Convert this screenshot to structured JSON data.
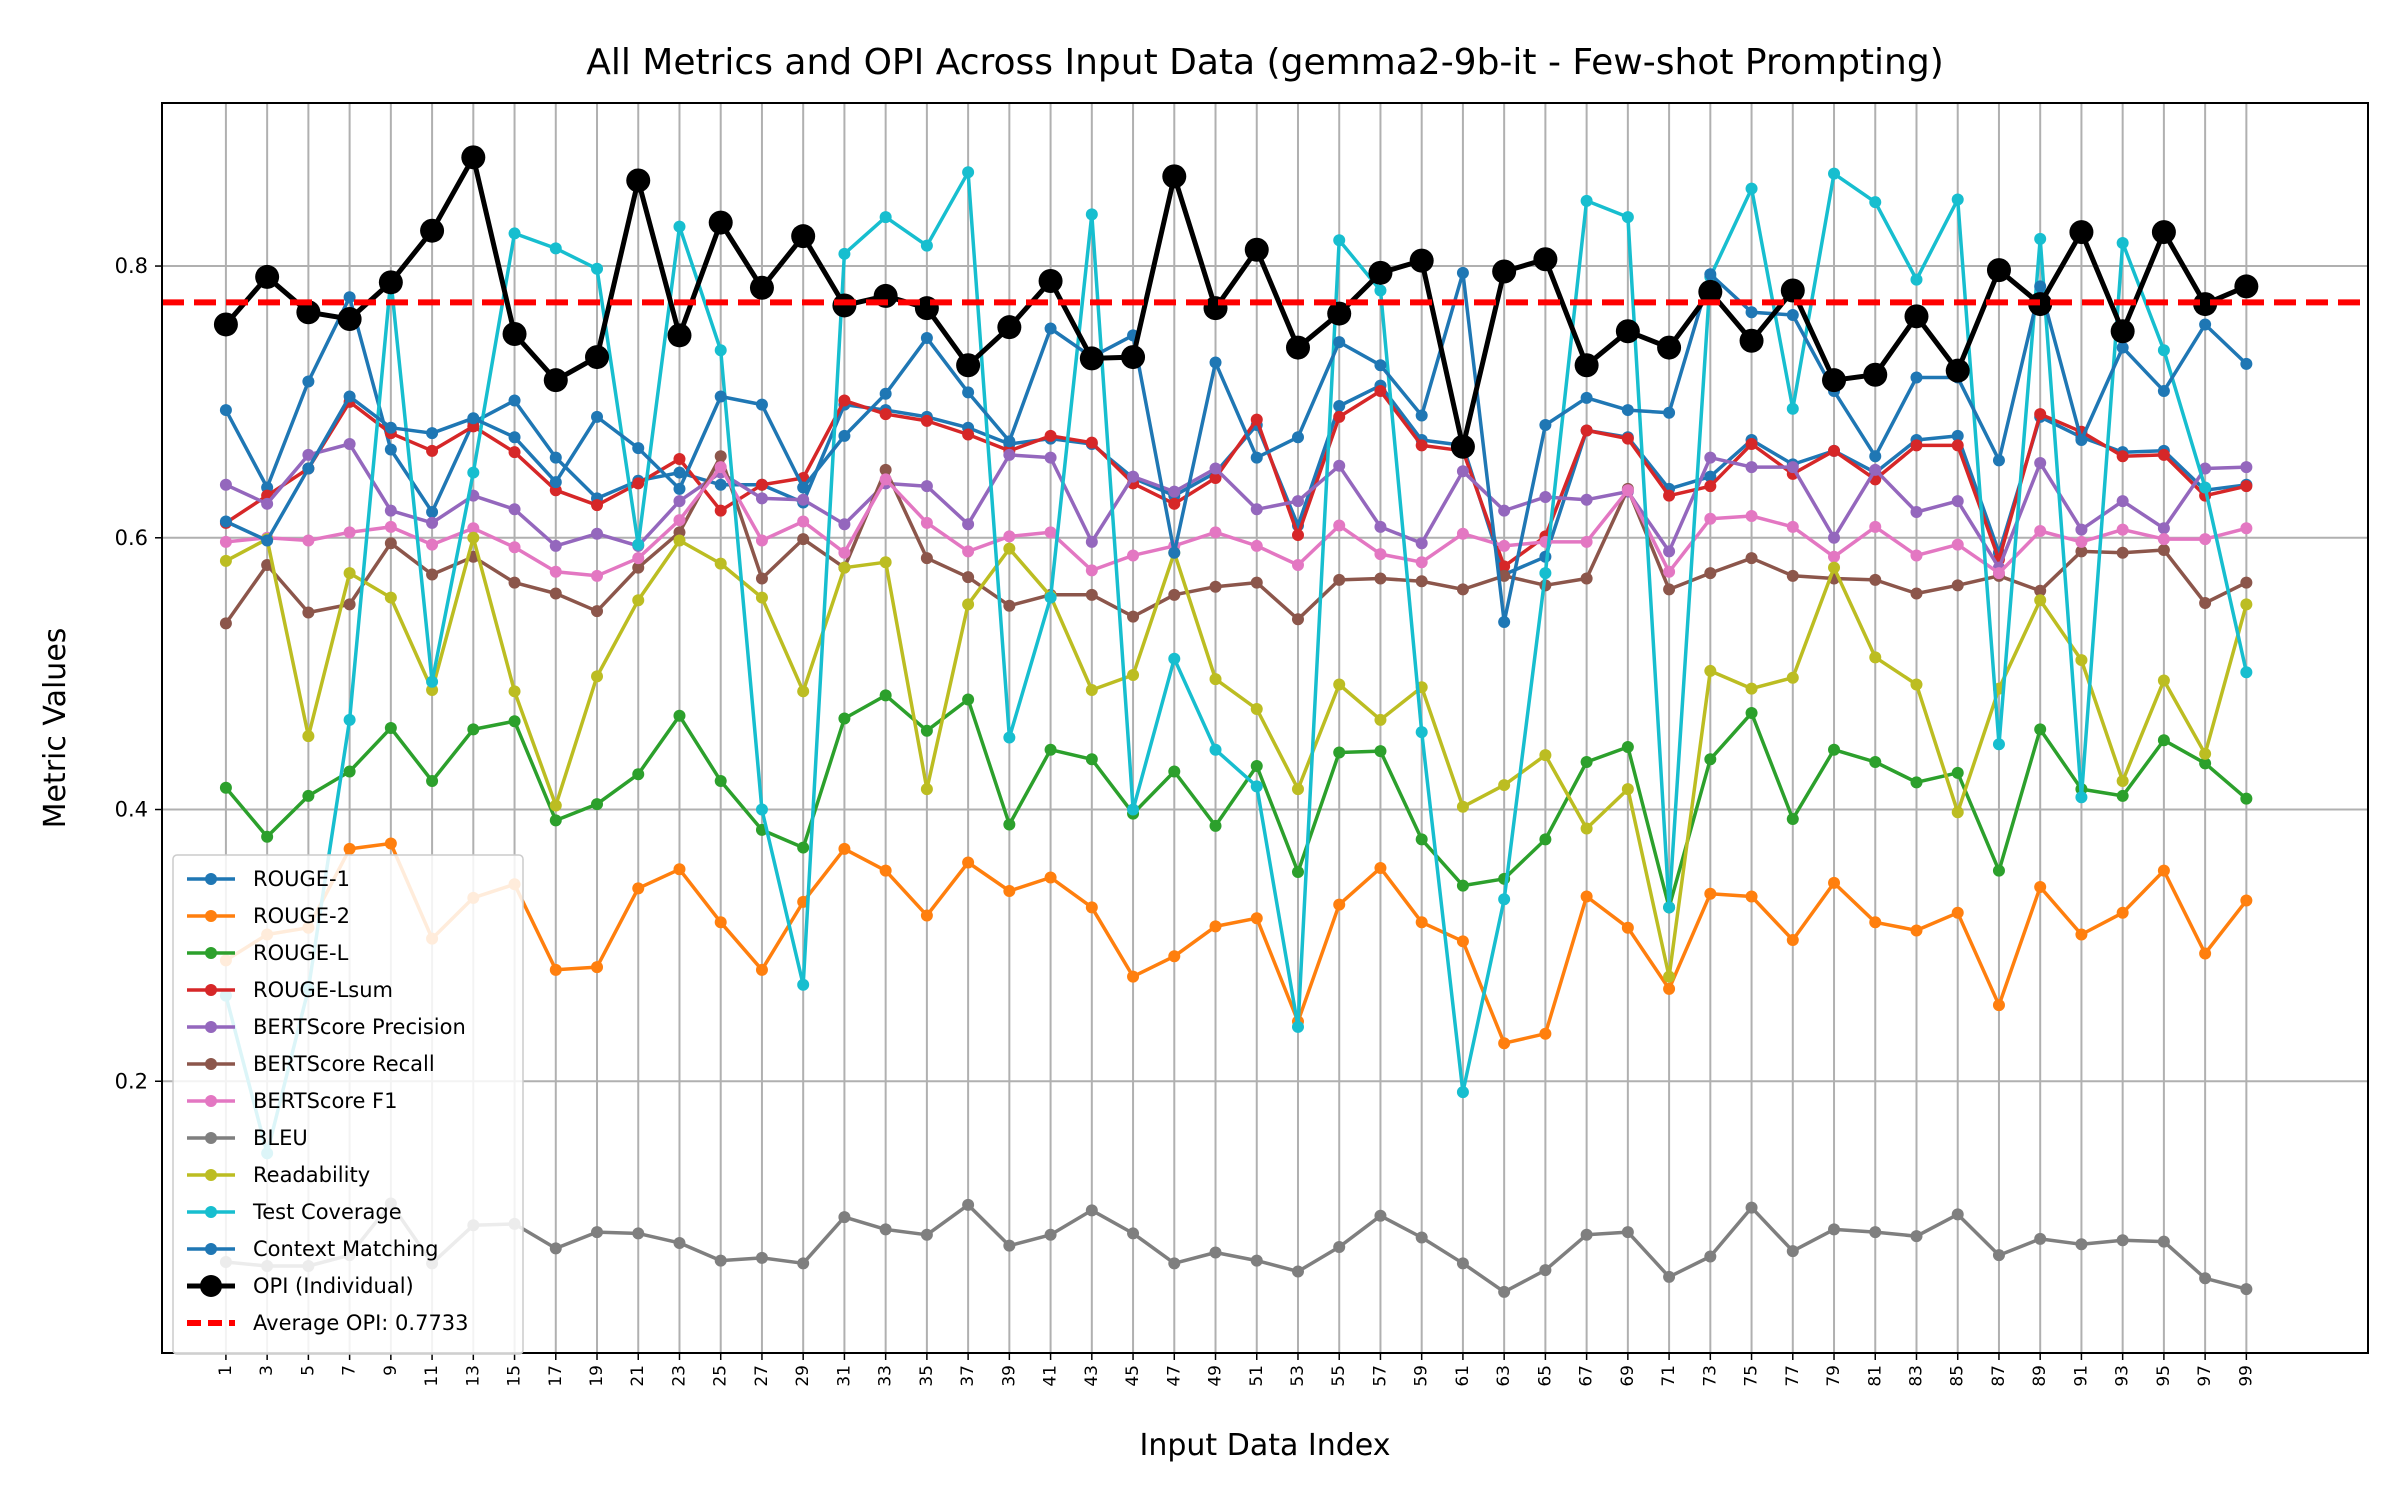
{
  "chart_data": {
    "type": "line",
    "title": "All Metrics and OPI Across Input Data (gemma2-9b-it - Few-shot Prompting)",
    "xlabel": "Input Data Index",
    "ylabel": "Metric Values",
    "xlim": [
      -2.1,
      104.9
    ],
    "ylim": [
      0.0,
      0.92
    ],
    "yticks": [
      0.2,
      0.4,
      0.6,
      0.8
    ],
    "ytick_labels": [
      "0.2",
      "0.4",
      "0.6",
      "0.8"
    ],
    "x": [
      1,
      3,
      5,
      7,
      9,
      11,
      13,
      15,
      17,
      19,
      21,
      23,
      25,
      27,
      29,
      31,
      33,
      35,
      37,
      39,
      41,
      43,
      45,
      47,
      49,
      51,
      53,
      55,
      57,
      59,
      61,
      63,
      65,
      67,
      69,
      71,
      73,
      75,
      77,
      79,
      81,
      83,
      85,
      87,
      89,
      91,
      93,
      95,
      97,
      99
    ],
    "xtick_labels": [
      "1",
      "3",
      "5",
      "7",
      "9",
      "11",
      "13",
      "15",
      "17",
      "19",
      "21",
      "23",
      "25",
      "27",
      "29",
      "31",
      "33",
      "35",
      "37",
      "39",
      "41",
      "43",
      "45",
      "47",
      "49",
      "51",
      "53",
      "55",
      "57",
      "59",
      "61",
      "63",
      "65",
      "67",
      "69",
      "71",
      "73",
      "75",
      "77",
      "79",
      "81",
      "83",
      "85",
      "87",
      "89",
      "91",
      "93",
      "95",
      "97",
      "99"
    ],
    "grid": true,
    "legend_position": "lower-left",
    "series": [
      {
        "name": "ROUGE-1",
        "color": "#1f77b4",
        "values": [
          0.694,
          0.637,
          0.715,
          0.777,
          0.665,
          0.619,
          0.685,
          0.701,
          0.659,
          0.629,
          0.642,
          0.648,
          0.639,
          0.639,
          0.626,
          0.698,
          0.694,
          0.689,
          0.681,
          0.669,
          0.673,
          0.669,
          0.644,
          0.631,
          0.648,
          0.683,
          0.609,
          0.697,
          0.712,
          0.672,
          0.668,
          0.573,
          0.586,
          0.679,
          0.674,
          0.636,
          0.645,
          0.672,
          0.654,
          0.664,
          0.648,
          0.672,
          0.675,
          0.589,
          0.689,
          0.674,
          0.663,
          0.664,
          0.635,
          0.639
        ]
      },
      {
        "name": "ROUGE-2",
        "color": "#ff7f0e",
        "values": [
          0.289,
          0.308,
          0.313,
          0.371,
          0.375,
          0.305,
          0.335,
          0.345,
          0.282,
          0.284,
          0.342,
          0.356,
          0.317,
          0.282,
          0.332,
          0.371,
          0.355,
          0.322,
          0.361,
          0.34,
          0.35,
          0.328,
          0.277,
          0.292,
          0.314,
          0.32,
          0.244,
          0.33,
          0.357,
          0.317,
          0.303,
          0.228,
          0.235,
          0.336,
          0.313,
          0.268,
          0.338,
          0.336,
          0.304,
          0.346,
          0.317,
          0.311,
          0.324,
          0.256,
          0.343,
          0.308,
          0.324,
          0.355,
          0.294,
          0.333
        ]
      },
      {
        "name": "ROUGE-L",
        "color": "#2ca02c",
        "values": [
          0.416,
          0.38,
          0.41,
          0.428,
          0.46,
          0.421,
          0.459,
          0.465,
          0.392,
          0.404,
          0.426,
          0.469,
          0.421,
          0.385,
          0.372,
          0.467,
          0.484,
          0.458,
          0.481,
          0.389,
          0.444,
          0.437,
          0.397,
          0.428,
          0.388,
          0.432,
          0.354,
          0.442,
          0.443,
          0.378,
          0.344,
          0.349,
          0.378,
          0.435,
          0.446,
          0.328,
          0.437,
          0.471,
          0.393,
          0.444,
          0.435,
          0.42,
          0.427,
          0.355,
          0.459,
          0.415,
          0.41,
          0.451,
          0.434,
          0.408
        ]
      },
      {
        "name": "ROUGE-Lsum",
        "color": "#d62728",
        "values": [
          0.611,
          0.631,
          0.651,
          0.7,
          0.677,
          0.664,
          0.682,
          0.663,
          0.635,
          0.624,
          0.64,
          0.658,
          0.62,
          0.639,
          0.644,
          0.701,
          0.691,
          0.686,
          0.676,
          0.664,
          0.675,
          0.67,
          0.64,
          0.625,
          0.644,
          0.687,
          0.602,
          0.689,
          0.708,
          0.668,
          0.664,
          0.579,
          0.601,
          0.679,
          0.673,
          0.631,
          0.638,
          0.669,
          0.647,
          0.664,
          0.643,
          0.668,
          0.668,
          0.584,
          0.691,
          0.678,
          0.66,
          0.661,
          0.631,
          0.638
        ]
      },
      {
        "name": "BERTScore Precision",
        "color": "#9467bd",
        "values": [
          0.639,
          0.625,
          0.661,
          0.669,
          0.62,
          0.611,
          0.631,
          0.621,
          0.594,
          0.603,
          0.594,
          0.627,
          0.648,
          0.629,
          0.628,
          0.61,
          0.64,
          0.638,
          0.61,
          0.661,
          0.659,
          0.597,
          0.645,
          0.634,
          0.651,
          0.621,
          0.627,
          0.653,
          0.608,
          0.596,
          0.649,
          0.62,
          0.63,
          0.628,
          0.634,
          0.59,
          0.659,
          0.652,
          0.652,
          0.6,
          0.65,
          0.619,
          0.627,
          0.578,
          0.655,
          0.606,
          0.627,
          0.607,
          0.651,
          0.652
        ]
      },
      {
        "name": "BERTScore Recall",
        "color": "#8c564b",
        "values": [
          0.537,
          0.58,
          0.545,
          0.551,
          0.596,
          0.573,
          0.586,
          0.567,
          0.559,
          0.546,
          0.578,
          0.604,
          0.66,
          0.57,
          0.599,
          0.578,
          0.65,
          0.585,
          0.571,
          0.55,
          0.558,
          0.558,
          0.542,
          0.558,
          0.564,
          0.567,
          0.54,
          0.569,
          0.57,
          0.568,
          0.562,
          0.572,
          0.565,
          0.57,
          0.636,
          0.562,
          0.574,
          0.585,
          0.572,
          0.57,
          0.569,
          0.559,
          0.565,
          0.572,
          0.561,
          0.59,
          0.589,
          0.591,
          0.552,
          0.567
        ]
      },
      {
        "name": "BERTScore F1",
        "color": "#e377c2",
        "values": [
          0.597,
          0.6,
          0.598,
          0.604,
          0.608,
          0.595,
          0.607,
          0.593,
          0.575,
          0.572,
          0.585,
          0.613,
          0.652,
          0.598,
          0.612,
          0.589,
          0.643,
          0.611,
          0.59,
          0.601,
          0.604,
          0.576,
          0.587,
          0.594,
          0.604,
          0.594,
          0.58,
          0.609,
          0.588,
          0.582,
          0.603,
          0.594,
          0.597,
          0.597,
          0.635,
          0.575,
          0.614,
          0.616,
          0.608,
          0.586,
          0.608,
          0.587,
          0.595,
          0.574,
          0.605,
          0.597,
          0.606,
          0.599,
          0.599,
          0.607
        ]
      },
      {
        "name": "BLEU",
        "color": "#7f7f7f",
        "values": [
          0.067,
          0.064,
          0.064,
          0.072,
          0.11,
          0.066,
          0.094,
          0.095,
          0.077,
          0.089,
          0.088,
          0.081,
          0.068,
          0.07,
          0.066,
          0.1,
          0.091,
          0.087,
          0.109,
          0.079,
          0.087,
          0.105,
          0.088,
          0.066,
          0.074,
          0.068,
          0.06,
          0.078,
          0.101,
          0.085,
          0.066,
          0.045,
          0.061,
          0.087,
          0.089,
          0.056,
          0.071,
          0.107,
          0.075,
          0.091,
          0.089,
          0.086,
          0.102,
          0.072,
          0.084,
          0.08,
          0.083,
          0.082,
          0.055,
          0.047
        ]
      },
      {
        "name": "Readability",
        "color": "#bcbd22",
        "values": [
          0.583,
          0.599,
          0.454,
          0.574,
          0.556,
          0.488,
          0.6,
          0.487,
          0.403,
          0.498,
          0.554,
          0.598,
          0.581,
          0.556,
          0.487,
          0.578,
          0.582,
          0.415,
          0.551,
          0.592,
          0.557,
          0.488,
          0.499,
          0.589,
          0.496,
          0.474,
          0.415,
          0.492,
          0.466,
          0.49,
          0.402,
          0.418,
          0.44,
          0.386,
          0.415,
          0.277,
          0.502,
          0.489,
          0.497,
          0.578,
          0.512,
          0.492,
          0.398,
          0.489,
          0.554,
          0.51,
          0.421,
          0.495,
          0.441,
          0.551
        ]
      },
      {
        "name": "Test Coverage",
        "color": "#17becf",
        "values": [
          0.263,
          0.147,
          0.268,
          0.466,
          0.79,
          0.494,
          0.648,
          0.824,
          0.813,
          0.798,
          0.595,
          0.829,
          0.738,
          0.4,
          0.271,
          0.809,
          0.836,
          0.815,
          0.869,
          0.453,
          0.556,
          0.838,
          0.4,
          0.511,
          0.444,
          0.417,
          0.24,
          0.819,
          0.782,
          0.457,
          0.192,
          0.334,
          0.574,
          0.848,
          0.836,
          0.328,
          0.792,
          0.857,
          0.695,
          0.868,
          0.847,
          0.79,
          0.849,
          0.448,
          0.82,
          0.409,
          0.817,
          0.738,
          0.637,
          0.501
        ]
      },
      {
        "name": "Context Matching",
        "color": "#1f77b4",
        "values": [
          0.612,
          0.598,
          0.651,
          0.704,
          0.681,
          0.677,
          0.688,
          0.674,
          0.641,
          0.689,
          0.666,
          0.636,
          0.704,
          0.698,
          0.637,
          0.675,
          0.706,
          0.747,
          0.707,
          0.671,
          0.754,
          0.733,
          0.749,
          0.589,
          0.729,
          0.659,
          0.674,
          0.744,
          0.727,
          0.69,
          0.795,
          0.538,
          0.683,
          0.703,
          0.694,
          0.692,
          0.794,
          0.766,
          0.764,
          0.708,
          0.66,
          0.718,
          0.718,
          0.657,
          0.785,
          0.672,
          0.74,
          0.708,
          0.757,
          0.728
        ]
      },
      {
        "name": "OPI (Individual)",
        "color": "#000000",
        "values": [
          0.757,
          0.792,
          0.766,
          0.761,
          0.788,
          0.826,
          0.88,
          0.75,
          0.716,
          0.733,
          0.863,
          0.749,
          0.832,
          0.784,
          0.822,
          0.771,
          0.778,
          0.769,
          0.727,
          0.755,
          0.789,
          0.732,
          0.733,
          0.866,
          0.769,
          0.812,
          0.74,
          0.765,
          0.795,
          0.804,
          0.667,
          0.796,
          0.805,
          0.727,
          0.752,
          0.74,
          0.781,
          0.745,
          0.782,
          0.716,
          0.72,
          0.763,
          0.723,
          0.797,
          0.772,
          0.825,
          0.752,
          0.825,
          0.772,
          0.785
        ]
      }
    ],
    "reference_line": {
      "name": "Average OPI: 0.7733",
      "value": 0.7733,
      "color": "#ff0000",
      "style": "dashed"
    }
  }
}
